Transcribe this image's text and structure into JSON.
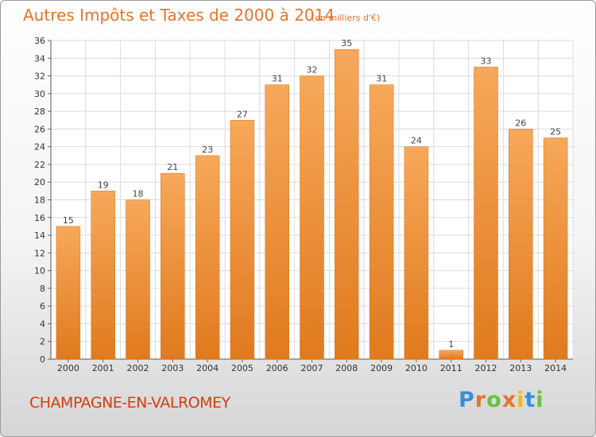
{
  "chart_data": {
    "type": "bar",
    "title": "Autres Impôts et Taxes de 2000 à 2014",
    "subtitle": "(en milliers d'€)",
    "categories": [
      "2000",
      "2001",
      "2002",
      "2003",
      "2004",
      "2005",
      "2006",
      "2007",
      "2008",
      "2009",
      "2010",
      "2011",
      "2012",
      "2013",
      "2014"
    ],
    "values": [
      15,
      19,
      18,
      21,
      23,
      27,
      31,
      32,
      35,
      31,
      24,
      1,
      33,
      26,
      25
    ],
    "ylim": [
      0,
      36
    ],
    "ytick_step": 2,
    "grid": true,
    "bar_color": "#F0923A"
  },
  "footer": {
    "commune": "CHAMPAGNE-EN-VALROMEY"
  },
  "logo": {
    "letters": [
      "P",
      "r",
      "o",
      "x",
      "i",
      "t",
      "i"
    ],
    "colors": [
      "#3B8FD9",
      "#E8742A",
      "#6DBE45",
      "#E8742A",
      "#F2B81B",
      "#3B8FD9",
      "#6DBE45"
    ]
  }
}
